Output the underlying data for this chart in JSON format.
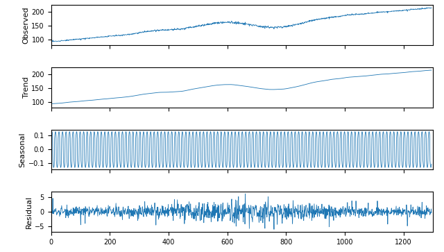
{
  "n_points": 1296,
  "period": 12,
  "line_color": "#1f77b4",
  "line_width": 0.6,
  "observed_ylim": [
    80,
    225
  ],
  "trend_ylim": [
    80,
    225
  ],
  "seasonal_ylim": [
    -0.145,
    0.145
  ],
  "residual_ylim": [
    -7,
    7
  ],
  "xlim": [
    0,
    1300
  ],
  "xticks": [
    0,
    200,
    400,
    600,
    800,
    1000,
    1200
  ],
  "observed_yticks": [
    100,
    150,
    200
  ],
  "trend_yticks": [
    100,
    150,
    200
  ],
  "seasonal_yticks": [
    -0.1,
    0.0,
    0.1
  ],
  "residual_yticks": [
    -5,
    0,
    5
  ],
  "ylabel_observed": "Observed",
  "ylabel_trend": "Trend",
  "ylabel_seasonal": "Seasonal",
  "ylabel_residual": "Residual",
  "seed": 42
}
